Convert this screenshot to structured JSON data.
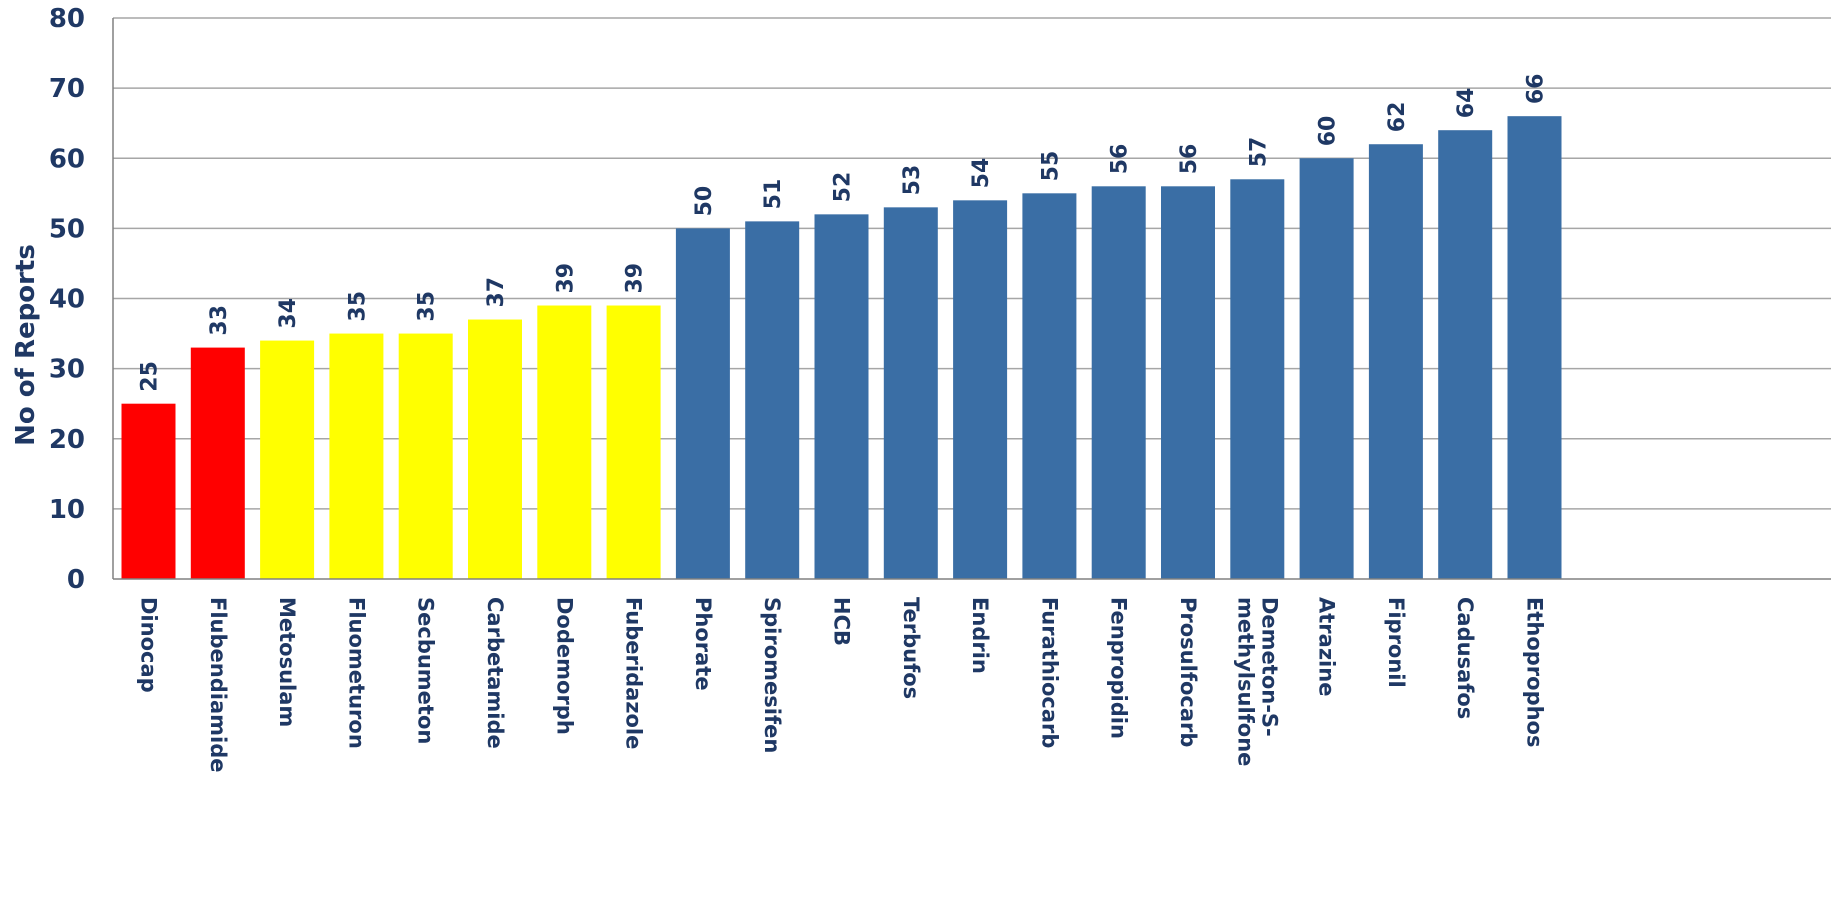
{
  "chart_data": {
    "type": "bar",
    "title": "",
    "xlabel": "",
    "ylabel": "No of Reports",
    "ylim": [
      0,
      80
    ],
    "yticks": [
      0,
      10,
      20,
      30,
      40,
      50,
      60,
      70,
      80
    ],
    "grid": true,
    "categories": [
      [
        "Dinocap"
      ],
      [
        "Flubendiamide"
      ],
      [
        "Metosulam"
      ],
      [
        "Fluometuron"
      ],
      [
        "Secbumeton"
      ],
      [
        "Carbetamide"
      ],
      [
        "Dodemorph"
      ],
      [
        "Fuberidazole"
      ],
      [
        "Phorate"
      ],
      [
        "Spiromesifen"
      ],
      [
        "HCB"
      ],
      [
        "Terbufos"
      ],
      [
        "Endrin"
      ],
      [
        "Furathiocarb"
      ],
      [
        "Fenpropidin"
      ],
      [
        "Prosulfocarb"
      ],
      [
        "Demeton-S-",
        "methylsulfone"
      ],
      [
        "Atrazine"
      ],
      [
        "Fipronil"
      ],
      [
        "Cadusafos"
      ],
      [
        "Ethoprophos"
      ]
    ],
    "values": [
      25,
      33,
      34,
      35,
      35,
      37,
      39,
      39,
      50,
      51,
      52,
      53,
      54,
      55,
      56,
      56,
      57,
      60,
      62,
      64,
      66
    ],
    "bar_colors": [
      "#ff0000",
      "#ff0000",
      "#ffff00",
      "#ffff00",
      "#ffff00",
      "#ffff00",
      "#ffff00",
      "#ffff00",
      "#3a6ea5",
      "#3a6ea5",
      "#3a6ea5",
      "#3a6ea5",
      "#3a6ea5",
      "#3a6ea5",
      "#3a6ea5",
      "#3a6ea5",
      "#3a6ea5",
      "#3a6ea5",
      "#3a6ea5",
      "#3a6ea5",
      "#3a6ea5"
    ]
  }
}
